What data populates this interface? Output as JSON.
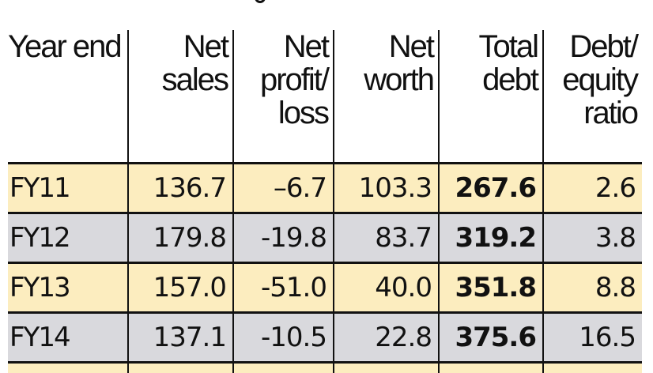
{
  "title": {
    "visible": "cropped"
  },
  "table": {
    "columns": [
      {
        "key": "year_end",
        "lines": [
          "Year end"
        ]
      },
      {
        "key": "net_sales",
        "lines": [
          "Net",
          "sales"
        ]
      },
      {
        "key": "net_profit_loss",
        "lines": [
          "Net",
          "profit/",
          "loss"
        ]
      },
      {
        "key": "net_worth",
        "lines": [
          "Net",
          "worth"
        ]
      },
      {
        "key": "total_debt",
        "lines": [
          "Total",
          "debt"
        ]
      },
      {
        "key": "debt_equity_ratio",
        "lines": [
          "Debt/",
          "equity",
          "ratio"
        ]
      }
    ],
    "rows": [
      {
        "cells": [
          "FY11",
          "136.7",
          "–6.7",
          "103.3",
          "267.6",
          "2.6"
        ],
        "shade": "yellow"
      },
      {
        "cells": [
          "FY12",
          "179.8",
          "-19.8",
          "83.7",
          "319.2",
          "3.8"
        ],
        "shade": "gray"
      },
      {
        "cells": [
          "FY13",
          "157.0",
          "-51.0",
          "40.0",
          "351.8",
          "8.8"
        ],
        "shade": "yellow"
      },
      {
        "cells": [
          "FY14",
          "137.1",
          "-10.5",
          "22.8",
          "375.6",
          "16.5"
        ],
        "shade": "gray"
      }
    ],
    "colors": {
      "row_yellow": "#FCEDBF",
      "row_gray": "#D9D9DD",
      "rule": "#111111"
    }
  }
}
